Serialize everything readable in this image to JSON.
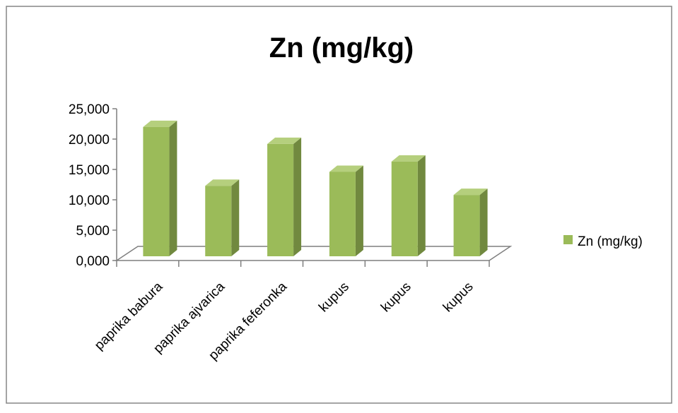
{
  "chart_data": {
    "type": "bar",
    "title": "Zn  (mg/kg)",
    "categories": [
      "paprika babura",
      "paprika ajvarica",
      "paprika feferonka",
      "kupus",
      "kupus",
      "kupus"
    ],
    "series": [
      {
        "name": "Zn  (mg/kg)",
        "values": [
          21.3,
          11.6,
          18.5,
          13.9,
          15.6,
          10.1
        ]
      }
    ],
    "ylim": [
      0,
      25
    ],
    "yticks": [
      0,
      5,
      10,
      15,
      20,
      25
    ],
    "ytick_labels": [
      "0,000",
      "5,000",
      "10,000",
      "15,000",
      "20,000",
      "25,000"
    ],
    "xlabel": "",
    "ylabel": "",
    "legend_position": "right",
    "grid": false,
    "colors": {
      "bar_front": "#9bbb59",
      "bar_side": "#71893f",
      "bar_top": "#b5cf7d",
      "axis": "#7f7f7f",
      "border": "#868686"
    }
  }
}
